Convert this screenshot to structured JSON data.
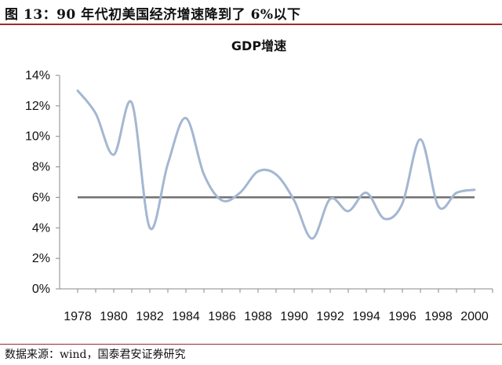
{
  "caption": "图 13：90 年代初美国经济增速降到了 6%以下",
  "source": "数据来源：wind，国泰君安证券研究",
  "colors": {
    "rule": "#9e2a2b",
    "series": "#a4b7d1",
    "reference": "#6f6f6f"
  },
  "chart_data": {
    "type": "line",
    "title": "GDP增速",
    "x_ticks": [
      "1978",
      "1980",
      "1982",
      "1984",
      "1986",
      "1988",
      "1990",
      "1992",
      "1994",
      "1996",
      "1998",
      "2000"
    ],
    "y_ticks": [
      "0%",
      "2%",
      "4%",
      "6%",
      "8%",
      "10%",
      "12%",
      "14%"
    ],
    "xlim": [
      1977,
      2001
    ],
    "ylim": [
      0,
      14
    ],
    "grid": false,
    "legend": "none",
    "series": [
      {
        "x": [
          1978,
          1979,
          1980,
          1981,
          1982,
          1983,
          1984,
          1985,
          1986,
          1987,
          1988,
          1989,
          1990,
          1991,
          1992,
          1993,
          1994,
          1995,
          1996,
          1997,
          1998,
          1999,
          2000
        ],
        "values": [
          13.0,
          11.5,
          8.8,
          12.2,
          4.0,
          8.2,
          11.2,
          7.5,
          5.8,
          6.3,
          7.7,
          7.5,
          5.8,
          3.3,
          5.9,
          5.1,
          6.3,
          4.6,
          5.6,
          9.8,
          5.4,
          6.3,
          6.5
        ]
      }
    ],
    "reference_line": {
      "y": 6
    }
  }
}
